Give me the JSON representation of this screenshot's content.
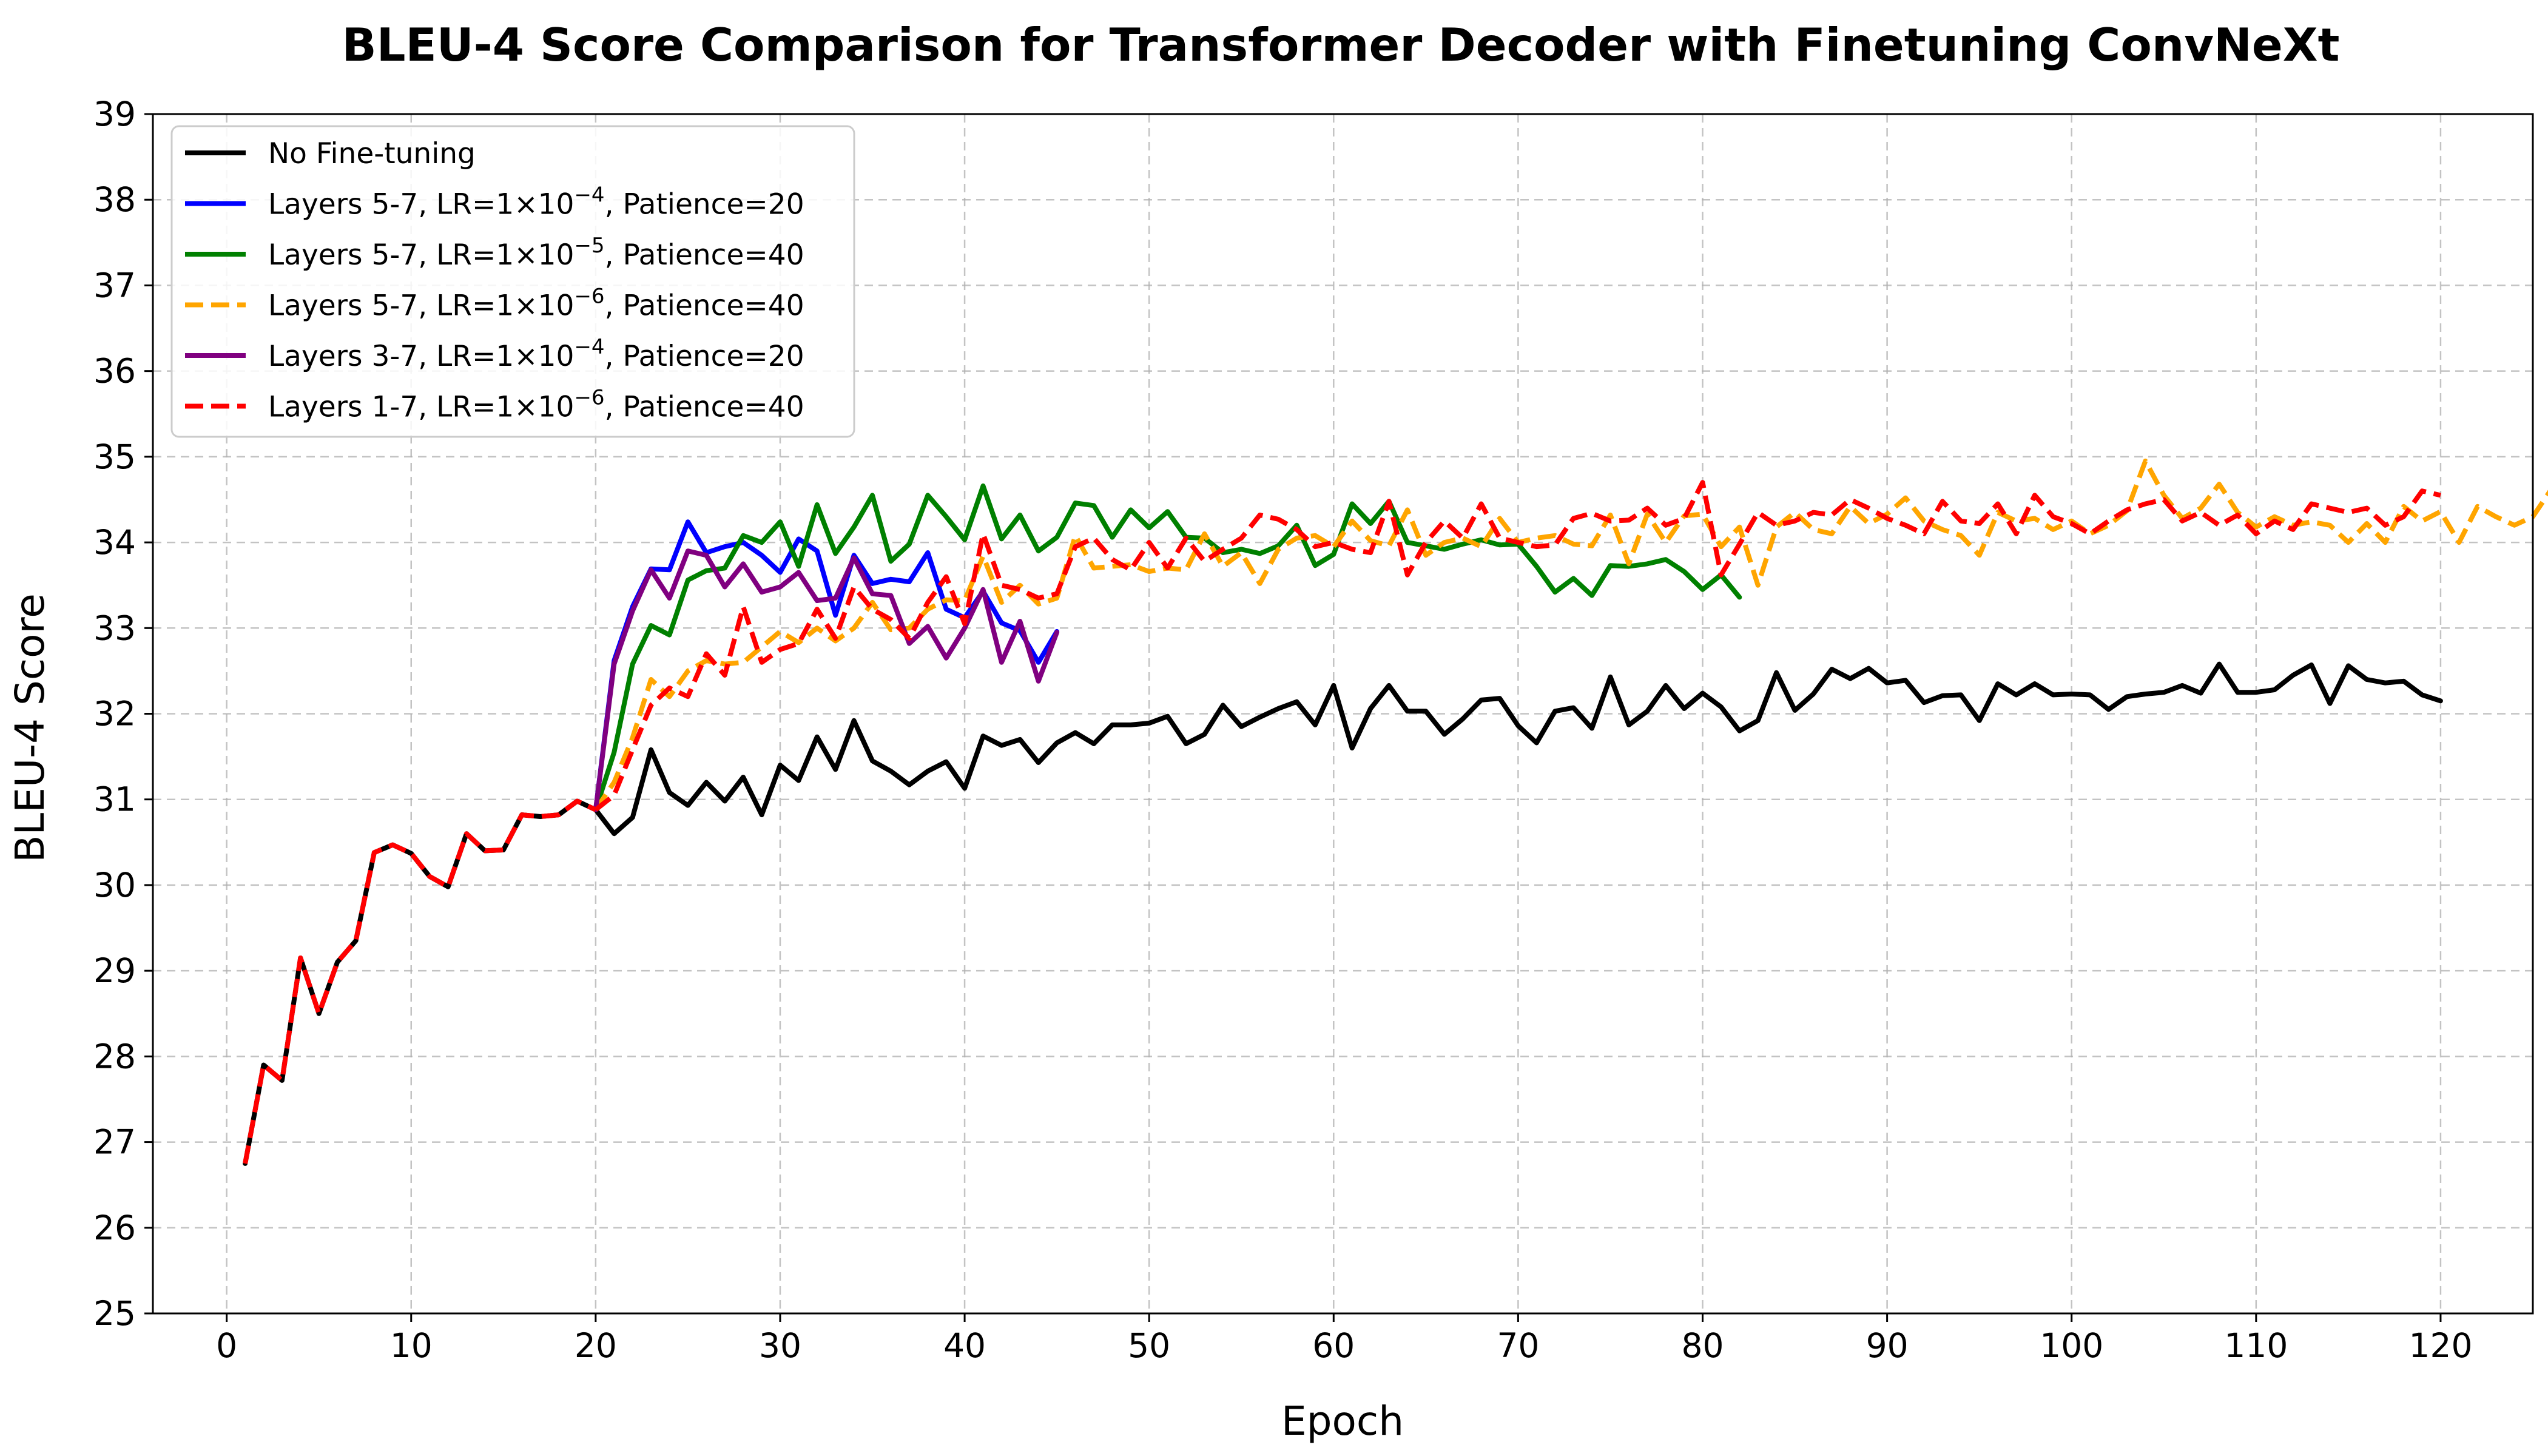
{
  "chart_data": {
    "type": "line",
    "title": "BLEU-4 Score Comparison for Transformer Decoder with Finetuning ConvNeXt",
    "xlabel": "Epoch",
    "ylabel": "BLEU-4 Score",
    "xlim": [
      -4,
      125
    ],
    "ylim": [
      25,
      39
    ],
    "xticks": [
      0,
      10,
      20,
      30,
      40,
      50,
      60,
      70,
      80,
      90,
      100,
      110,
      120
    ],
    "yticks": [
      25,
      26,
      27,
      28,
      29,
      30,
      31,
      32,
      33,
      34,
      35,
      36,
      37,
      38,
      39
    ],
    "grid": true,
    "legend_position": "upper-left",
    "shared_prefix": [
      26.75,
      27.9,
      27.72,
      29.15,
      28.5,
      29.1,
      29.35,
      30.38,
      30.47,
      30.37,
      30.1,
      29.98,
      30.6,
      30.4,
      30.41,
      30.82,
      30.8,
      30.82,
      30.98,
      30.88
    ],
    "series": [
      {
        "name": "No Fine-tuning",
        "label_pre": "No Fine-tuning",
        "color": "#000000",
        "dash": false,
        "values": [
          26.75,
          27.9,
          27.72,
          29.15,
          28.5,
          29.1,
          29.35,
          30.38,
          30.47,
          30.37,
          30.1,
          29.98,
          30.6,
          30.4,
          30.41,
          30.82,
          30.8,
          30.82,
          30.98,
          30.88,
          30.6,
          30.79,
          31.58,
          31.08,
          30.93,
          31.2,
          30.98,
          31.26,
          30.82,
          31.4,
          31.22,
          31.73,
          31.35,
          31.92,
          31.45,
          31.33,
          31.17,
          31.33,
          31.44,
          31.13,
          31.74,
          31.63,
          31.7,
          31.43,
          31.66,
          31.78,
          31.65,
          31.87,
          31.87,
          31.89,
          31.97,
          31.65,
          31.76,
          32.1,
          31.85,
          31.96,
          32.06,
          32.14,
          31.87,
          32.33,
          31.6,
          32.06,
          32.33,
          32.03,
          32.03,
          31.76,
          31.94,
          32.16,
          32.18,
          31.86,
          31.66,
          32.03,
          32.07,
          31.83,
          32.43,
          31.87,
          32.03,
          32.33,
          32.06,
          32.24,
          32.08,
          31.8,
          31.92,
          32.48,
          32.04,
          32.23,
          32.52,
          32.41,
          32.53,
          32.36,
          32.39,
          32.13,
          32.21,
          32.22,
          31.92,
          32.35,
          32.22,
          32.35,
          32.22,
          32.23,
          32.22,
          32.05,
          32.2,
          32.23,
          32.25,
          32.33,
          32.24,
          32.58,
          32.25,
          32.25,
          32.28,
          32.45,
          32.57,
          32.12,
          32.56,
          32.4,
          32.36,
          32.38,
          32.22,
          32.15
        ]
      },
      {
        "name": "Layers 5-7, LR=1×10^-4, Patience=20",
        "label_pre": "Layers 5-7, LR=1×10",
        "label_exp": "−4",
        "label_post": ", Patience=20",
        "color": "#0000ff",
        "dash": false,
        "start_epoch": 20,
        "values": [
          30.88,
          32.62,
          33.25,
          33.69,
          33.68,
          34.24,
          33.88,
          33.95,
          34.0,
          33.85,
          33.65,
          34.04,
          33.9,
          33.15,
          33.85,
          33.52,
          33.57,
          33.54,
          33.88,
          33.22,
          33.12,
          33.43,
          33.06,
          32.97,
          32.6,
          32.96
        ]
      },
      {
        "name": "Layers 5-7, LR=1×10^-5, Patience=40",
        "label_pre": "Layers 5-7, LR=1×10",
        "label_exp": "−5",
        "label_post": ", Patience=40",
        "color": "#008000",
        "dash": false,
        "start_epoch": 20,
        "values": [
          30.88,
          31.55,
          32.58,
          33.03,
          32.92,
          33.56,
          33.67,
          33.7,
          34.08,
          34.0,
          34.24,
          33.72,
          34.44,
          33.87,
          34.18,
          34.55,
          33.78,
          33.98,
          34.55,
          34.3,
          34.03,
          34.66,
          34.04,
          34.32,
          33.9,
          34.06,
          34.46,
          34.43,
          34.06,
          34.38,
          34.17,
          34.36,
          34.06,
          34.05,
          33.88,
          33.92,
          33.87,
          33.96,
          34.2,
          33.73,
          33.86,
          34.45,
          34.22,
          34.48,
          34.0,
          33.96,
          33.92,
          33.98,
          34.03,
          33.97,
          33.98,
          33.72,
          33.42,
          33.58,
          33.38,
          33.73,
          33.72,
          33.75,
          33.8,
          33.66,
          33.45,
          33.62,
          33.36
        ]
      },
      {
        "name": "Layers 5-7, LR=1×10^-6, Patience=40",
        "label_pre": "Layers 5-7, LR=1×10",
        "label_exp": "−6",
        "label_post": ", Patience=40",
        "color": "#ffa500",
        "dash": true,
        "start_epoch": 20,
        "values": [
          30.88,
          31.2,
          31.72,
          32.4,
          32.2,
          32.5,
          32.62,
          32.58,
          32.6,
          32.78,
          32.96,
          32.83,
          33.0,
          32.85,
          33.0,
          33.3,
          32.98,
          33.0,
          33.22,
          33.33,
          33.32,
          33.84,
          33.3,
          33.5,
          33.28,
          33.35,
          34.08,
          33.7,
          33.72,
          33.74,
          33.66,
          33.7,
          33.68,
          34.1,
          33.72,
          33.88,
          33.52,
          33.92,
          34.05,
          34.08,
          33.95,
          34.25,
          34.02,
          33.96,
          34.38,
          33.85,
          34.0,
          34.05,
          33.95,
          34.28,
          34.0,
          34.05,
          34.08,
          33.98,
          33.96,
          34.32,
          33.75,
          34.33,
          34.0,
          34.31,
          34.33,
          33.95,
          34.18,
          33.5,
          34.18,
          34.35,
          34.15,
          34.1,
          34.42,
          34.22,
          34.33,
          34.52,
          34.25,
          34.15,
          34.08,
          33.85,
          34.35,
          34.25,
          34.28,
          34.15,
          34.25,
          34.1,
          34.2,
          34.37,
          34.95,
          34.55,
          34.28,
          34.4,
          34.68,
          34.35,
          34.18,
          34.3,
          34.2,
          34.24,
          34.2,
          34.0,
          34.22,
          34.0,
          34.42,
          34.25,
          34.36,
          34.0,
          34.42,
          34.3,
          34.2,
          34.3,
          34.62,
          34.45
        ]
      },
      {
        "name": "Layers 3-7, LR=1×10^-4, Patience=20",
        "label_pre": "Layers 3-7, LR=1×10",
        "label_exp": "−4",
        "label_post": ", Patience=20",
        "color": "#800080",
        "dash": false,
        "start_epoch": 20,
        "values": [
          30.88,
          32.58,
          33.2,
          33.68,
          33.35,
          33.9,
          33.85,
          33.48,
          33.75,
          33.42,
          33.48,
          33.65,
          33.32,
          33.35,
          33.82,
          33.4,
          33.38,
          32.82,
          33.02,
          32.65,
          33.0,
          33.45,
          32.6,
          33.08,
          32.38,
          32.95
        ]
      },
      {
        "name": "Layers 1-7, LR=1×10^-6, Patience=40",
        "label_pre": "Layers 1-7, LR=1×10",
        "label_exp": "−6",
        "label_post": ", Patience=40",
        "color": "#ff0000",
        "dash": true,
        "start_epoch": 20,
        "values": [
          30.88,
          31.05,
          31.58,
          32.1,
          32.3,
          32.2,
          32.7,
          32.45,
          33.25,
          32.6,
          32.75,
          32.82,
          33.22,
          32.88,
          33.48,
          33.22,
          33.1,
          32.88,
          33.3,
          33.6,
          33.05,
          34.1,
          33.5,
          33.45,
          33.35,
          33.4,
          33.95,
          34.05,
          33.8,
          33.68,
          34.0,
          33.7,
          34.05,
          33.78,
          33.92,
          34.05,
          34.32,
          34.27,
          34.15,
          33.95,
          34.0,
          33.92,
          33.88,
          34.48,
          33.62,
          34.0,
          34.25,
          34.05,
          34.45,
          34.05,
          34.0,
          33.95,
          33.97,
          34.28,
          34.34,
          34.25,
          34.26,
          34.4,
          34.2,
          34.28,
          34.7,
          33.62,
          33.98,
          34.35,
          34.2,
          34.25,
          34.35,
          34.32,
          34.5,
          34.4,
          34.28,
          34.2,
          34.1,
          34.48,
          34.25,
          34.22,
          34.45,
          34.1,
          34.55,
          34.3,
          34.22,
          34.1,
          34.25,
          34.38,
          34.45,
          34.5,
          34.25,
          34.35,
          34.2,
          34.32,
          34.1,
          34.25,
          34.15,
          34.45,
          34.4,
          34.35,
          34.4,
          34.2,
          34.3,
          34.6,
          34.55
        ]
      }
    ]
  }
}
